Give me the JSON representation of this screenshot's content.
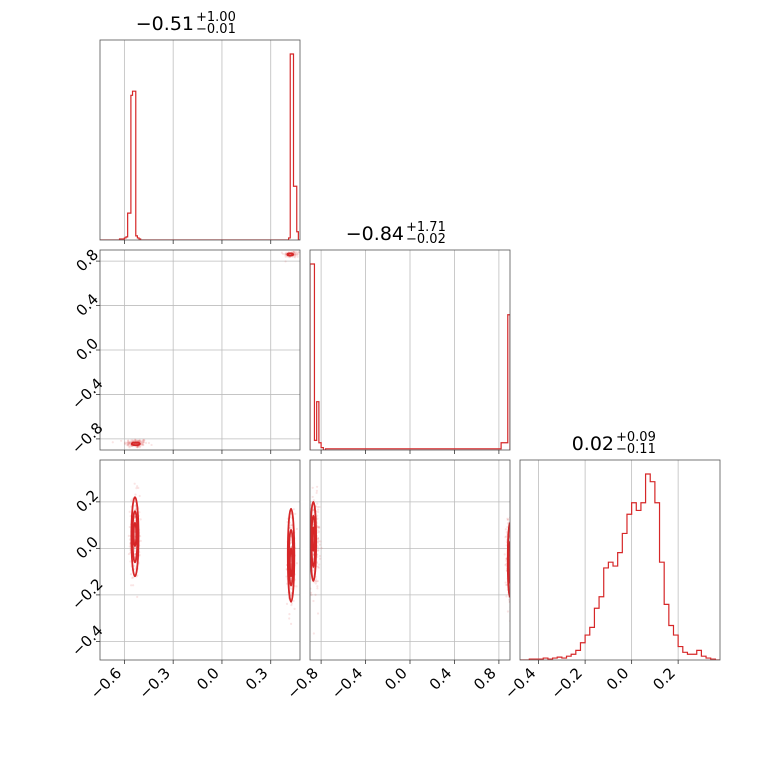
{
  "chart_data": {
    "type": "corner",
    "color": "#d62728",
    "grid": true,
    "parameters": [
      {
        "range": [
          -0.75,
          0.48
        ],
        "ticks": [
          -0.6,
          -0.3,
          0.0,
          0.3
        ],
        "tick_labels": [
          "−0.6",
          "−0.3",
          "0.0",
          "0.3"
        ],
        "title": {
          "median": "−0.51",
          "plus": "+1.00",
          "minus": "−0.01"
        }
      },
      {
        "range": [
          -0.9,
          0.9
        ],
        "ticks": [
          -0.8,
          -0.4,
          0.0,
          0.4,
          0.8
        ],
        "tick_labels": [
          "−0.8",
          "−0.4",
          "0.0",
          "0.4",
          "0.8"
        ],
        "title": {
          "median": "−0.84",
          "plus": "+1.71",
          "minus": "−0.02"
        }
      },
      {
        "range": [
          -0.48,
          0.38
        ],
        "ticks": [
          -0.4,
          -0.2,
          0.0,
          0.2
        ],
        "tick_labels": [
          "−0.4",
          "−0.2",
          "0.0",
          "0.2"
        ],
        "title": {
          "median": "0.02",
          "plus": "+0.09",
          "minus": "−0.11"
        }
      }
    ],
    "histograms": [
      {
        "parameter": 0,
        "edges": [
          -0.75,
          -0.71,
          -0.67,
          -0.63,
          -0.61,
          -0.6,
          -0.59,
          -0.58,
          -0.57,
          -0.56,
          -0.55,
          -0.54,
          -0.53,
          -0.52,
          -0.51,
          -0.5,
          -0.49,
          -0.48,
          0.36,
          0.41,
          0.42,
          0.43,
          0.44,
          0.45,
          0.46,
          0.47,
          0.48
        ],
        "counts": [
          0,
          0,
          0,
          0.5,
          0.5,
          1,
          1.5,
          13,
          13,
          70,
          72,
          72,
          2,
          1,
          0.5,
          0,
          0,
          0,
          0,
          1,
          90,
          90,
          26,
          26,
          4,
          0
        ]
      },
      {
        "parameter": 1,
        "edges": [
          -0.9,
          -0.88,
          -0.86,
          -0.84,
          -0.82,
          -0.8,
          -0.78,
          -0.76,
          0.8,
          0.82,
          0.84,
          0.86,
          0.88,
          0.9
        ],
        "counts": [
          77,
          77,
          4,
          20,
          3,
          1,
          0,
          0.5,
          0.5,
          3,
          3,
          3,
          56
        ]
      },
      {
        "parameter": 2,
        "edges": [
          -0.48,
          -0.46,
          -0.44,
          -0.42,
          -0.4,
          -0.38,
          -0.36,
          -0.34,
          -0.32,
          -0.3,
          -0.28,
          -0.26,
          -0.24,
          -0.22,
          -0.2,
          -0.18,
          -0.16,
          -0.14,
          -0.12,
          -0.1,
          -0.08,
          -0.06,
          -0.04,
          -0.02,
          0.0,
          0.02,
          0.04,
          0.06,
          0.08,
          0.1,
          0.12,
          0.14,
          0.16,
          0.18,
          0.2,
          0.22,
          0.24,
          0.26,
          0.28,
          0.3,
          0.32,
          0.34,
          0.36,
          0.38
        ],
        "counts": [
          0,
          0,
          0.5,
          0.5,
          0.5,
          1,
          0.5,
          1,
          1.5,
          1,
          2,
          3,
          5,
          9,
          13,
          17,
          27,
          33,
          48,
          51,
          49,
          56,
          66,
          76,
          82,
          78,
          82,
          97,
          93,
          82,
          51,
          29,
          18,
          13,
          7,
          4,
          3,
          3,
          5,
          2,
          1,
          0.5,
          0
        ]
      }
    ],
    "scatter_2d": [
      {
        "x_param": 0,
        "y_param": 1,
        "modes": [
          {
            "cx": -0.53,
            "cy": -0.84,
            "sx": 0.035,
            "sy": 0.02,
            "count": 140
          },
          {
            "cx": 0.43,
            "cy": 0.86,
            "sx": 0.025,
            "sy": 0.015,
            "count": 60
          }
        ],
        "contours": [
          {
            "cx": -0.53,
            "cy": -0.845,
            "rx": 0.025,
            "ry": 0.012
          },
          {
            "cx": 0.42,
            "cy": 0.86,
            "rx": 0.018,
            "ry": 0.01
          }
        ]
      },
      {
        "x_param": 0,
        "y_param": 2,
        "modes": [
          {
            "cx": -0.535,
            "cy": 0.05,
            "sx": 0.015,
            "sy": 0.09,
            "count": 200
          },
          {
            "cx": 0.425,
            "cy": -0.05,
            "sx": 0.012,
            "sy": 0.1,
            "count": 200
          }
        ],
        "contours": [
          {
            "cx": -0.535,
            "cy": 0.05,
            "rx": 0.022,
            "ry": 0.17
          },
          {
            "cx": -0.535,
            "cy": 0.05,
            "rx": 0.015,
            "ry": 0.11
          },
          {
            "cx": -0.535,
            "cy": 0.06,
            "rx": 0.008,
            "ry": 0.05
          },
          {
            "cx": 0.425,
            "cy": -0.03,
            "rx": 0.02,
            "ry": 0.2
          },
          {
            "cx": 0.425,
            "cy": -0.04,
            "rx": 0.013,
            "ry": 0.12
          },
          {
            "cx": 0.425,
            "cy": -0.06,
            "rx": 0.007,
            "ry": 0.06
          }
        ]
      },
      {
        "x_param": 1,
        "y_param": 2,
        "modes": [
          {
            "cx": -0.855,
            "cy": 0.02,
            "sx": 0.02,
            "sy": 0.1,
            "count": 220
          },
          {
            "cx": 0.89,
            "cy": -0.05,
            "sx": 0.012,
            "sy": 0.1,
            "count": 160
          }
        ],
        "contours": [
          {
            "cx": -0.87,
            "cy": 0.03,
            "rx": 0.025,
            "ry": 0.17
          },
          {
            "cx": -0.87,
            "cy": 0.03,
            "rx": 0.016,
            "ry": 0.11
          },
          {
            "cx": -0.87,
            "cy": 0.04,
            "rx": 0.009,
            "ry": 0.05
          },
          {
            "cx": 0.9,
            "cy": -0.05,
            "rx": 0.02,
            "ry": 0.16
          },
          {
            "cx": 0.9,
            "cy": -0.06,
            "rx": 0.012,
            "ry": 0.09
          }
        ]
      }
    ]
  }
}
